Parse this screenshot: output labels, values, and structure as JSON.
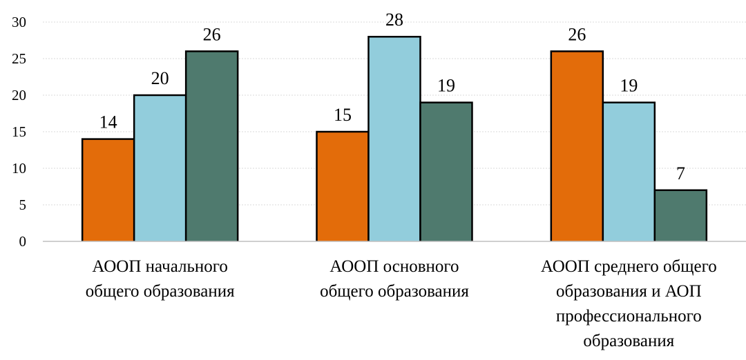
{
  "chart_data": {
    "type": "bar",
    "title": "",
    "xlabel": "",
    "ylabel": "",
    "ylim": [
      0,
      30
    ],
    "yticks": [
      0,
      5,
      10,
      15,
      20,
      25,
      30
    ],
    "grid": true,
    "legend": "none",
    "categories": [
      [
        "АООП начального",
        "общего образования"
      ],
      [
        "АООП основного",
        "общего образования"
      ],
      [
        "АООП среднего общего",
        "образования и АОП",
        "профессионального",
        "образования"
      ]
    ],
    "series": [
      {
        "color": "#E36C0A",
        "values": [
          14,
          15,
          26
        ]
      },
      {
        "color": "#92CDDC",
        "values": [
          20,
          28,
          19
        ]
      },
      {
        "color": "#4F7A6E",
        "values": [
          26,
          19,
          7
        ]
      }
    ]
  }
}
